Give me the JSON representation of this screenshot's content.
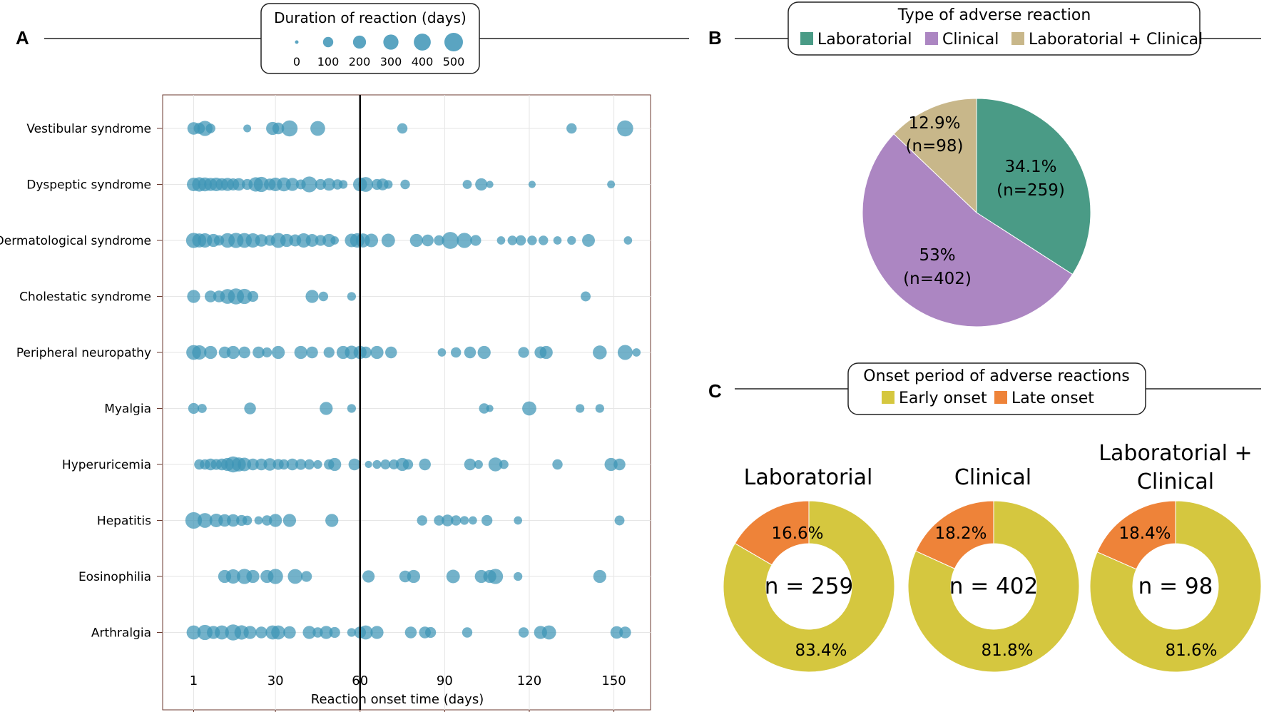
{
  "panels": {
    "a": "A",
    "b": "B",
    "c": "C"
  },
  "colors": {
    "bubble": "#3d94b6",
    "laboratorial": "#4a9b86",
    "clinical": "#ac86c2",
    "lab_clinical": "#c8b78a",
    "early": "#d5c73f",
    "late": "#ee8339",
    "axis": "#6b3a2f"
  },
  "chart_data": [
    {
      "type": "scatter",
      "title": "Duration of reaction (days)",
      "xlabel": "Reaction onset time (days)",
      "ylabel": "",
      "xlim": [
        -10,
        163
      ],
      "xticks": [
        1,
        30,
        60,
        90,
        120,
        150
      ],
      "vline": 60,
      "size_legend": [
        0,
        100,
        200,
        300,
        400,
        500
      ],
      "categories": [
        "Vestibular syndrome",
        "Dyspeptic syndrome",
        "Dermatological syndrome",
        "Cholestatic syndrome",
        "Peripheral neuropathy",
        "Myalgia",
        "Hyperuricemia",
        "Hepatitis",
        "Eosinophilia",
        "Arthralgia"
      ],
      "points": [
        [
          [
            1,
            180
          ],
          [
            3,
            130
          ],
          [
            5,
            300
          ],
          [
            7,
            80
          ],
          [
            20,
            40
          ],
          [
            29,
            200
          ],
          [
            31,
            150
          ],
          [
            35,
            350
          ],
          [
            45,
            280
          ],
          [
            75,
            100
          ],
          [
            135,
            100
          ],
          [
            154,
            350
          ]
        ],
        [
          [
            1,
            220
          ],
          [
            3,
            260
          ],
          [
            5,
            240
          ],
          [
            7,
            200
          ],
          [
            9,
            220
          ],
          [
            11,
            180
          ],
          [
            13,
            200
          ],
          [
            15,
            160
          ],
          [
            17,
            180
          ],
          [
            20,
            120
          ],
          [
            23,
            260
          ],
          [
            25,
            300
          ],
          [
            28,
            150
          ],
          [
            30,
            220
          ],
          [
            33,
            240
          ],
          [
            36,
            200
          ],
          [
            39,
            90
          ],
          [
            42,
            340
          ],
          [
            46,
            120
          ],
          [
            49,
            180
          ],
          [
            52,
            100
          ],
          [
            54,
            60
          ],
          [
            60,
            240
          ],
          [
            62,
            280
          ],
          [
            66,
            120
          ],
          [
            68,
            150
          ],
          [
            70,
            60
          ],
          [
            76,
            80
          ],
          [
            98,
            70
          ],
          [
            103,
            170
          ],
          [
            106,
            30
          ],
          [
            121,
            30
          ],
          [
            149,
            40
          ]
        ],
        [
          [
            1,
            300
          ],
          [
            3,
            250
          ],
          [
            5,
            260
          ],
          [
            8,
            200
          ],
          [
            10,
            100
          ],
          [
            13,
            270
          ],
          [
            16,
            300
          ],
          [
            19,
            280
          ],
          [
            22,
            260
          ],
          [
            25,
            180
          ],
          [
            28,
            120
          ],
          [
            31,
            290
          ],
          [
            34,
            200
          ],
          [
            37,
            160
          ],
          [
            40,
            260
          ],
          [
            43,
            190
          ],
          [
            46,
            120
          ],
          [
            49,
            200
          ],
          [
            51,
            50
          ],
          [
            57,
            220
          ],
          [
            59,
            260
          ],
          [
            61,
            250
          ],
          [
            64,
            220
          ],
          [
            70,
            220
          ],
          [
            80,
            200
          ],
          [
            84,
            150
          ],
          [
            88,
            100
          ],
          [
            92,
            400
          ],
          [
            97,
            300
          ],
          [
            101,
            120
          ],
          [
            110,
            50
          ],
          [
            114,
            80
          ],
          [
            117,
            100
          ],
          [
            121,
            80
          ],
          [
            125,
            80
          ],
          [
            130,
            50
          ],
          [
            135,
            60
          ],
          [
            141,
            190
          ],
          [
            155,
            50
          ]
        ],
        [
          [
            1,
            200
          ],
          [
            7,
            150
          ],
          [
            10,
            150
          ],
          [
            13,
            280
          ],
          [
            16,
            350
          ],
          [
            19,
            300
          ],
          [
            22,
            120
          ],
          [
            43,
            200
          ],
          [
            47,
            80
          ],
          [
            57,
            60
          ],
          [
            140,
            90
          ]
        ],
        [
          [
            1,
            280
          ],
          [
            3,
            260
          ],
          [
            7,
            200
          ],
          [
            12,
            150
          ],
          [
            15,
            200
          ],
          [
            19,
            150
          ],
          [
            24,
            150
          ],
          [
            27,
            90
          ],
          [
            31,
            200
          ],
          [
            39,
            200
          ],
          [
            43,
            150
          ],
          [
            49,
            120
          ],
          [
            54,
            200
          ],
          [
            57,
            220
          ],
          [
            60,
            200
          ],
          [
            62,
            150
          ],
          [
            66,
            200
          ],
          [
            71,
            150
          ],
          [
            89,
            50
          ],
          [
            94,
            100
          ],
          [
            99,
            150
          ],
          [
            104,
            200
          ],
          [
            118,
            120
          ],
          [
            124,
            160
          ],
          [
            126,
            200
          ],
          [
            145,
            240
          ],
          [
            154,
            290
          ],
          [
            158,
            50
          ]
        ],
        [
          [
            1,
            120
          ],
          [
            4,
            70
          ],
          [
            21,
            150
          ],
          [
            48,
            200
          ],
          [
            57,
            60
          ],
          [
            104,
            100
          ],
          [
            106,
            30
          ],
          [
            120,
            250
          ],
          [
            138,
            60
          ],
          [
            145,
            60
          ]
        ],
        [
          [
            3,
            100
          ],
          [
            5,
            100
          ],
          [
            7,
            150
          ],
          [
            9,
            120
          ],
          [
            11,
            150
          ],
          [
            13,
            200
          ],
          [
            15,
            350
          ],
          [
            17,
            250
          ],
          [
            19,
            220
          ],
          [
            22,
            150
          ],
          [
            25,
            150
          ],
          [
            28,
            180
          ],
          [
            31,
            120
          ],
          [
            33,
            100
          ],
          [
            36,
            150
          ],
          [
            39,
            120
          ],
          [
            42,
            100
          ],
          [
            45,
            60
          ],
          [
            49,
            100
          ],
          [
            51,
            200
          ],
          [
            58,
            150
          ],
          [
            63,
            30
          ],
          [
            66,
            60
          ],
          [
            69,
            90
          ],
          [
            72,
            90
          ],
          [
            75,
            200
          ],
          [
            77,
            100
          ],
          [
            83,
            150
          ],
          [
            99,
            150
          ],
          [
            102,
            60
          ],
          [
            108,
            240
          ],
          [
            111,
            70
          ],
          [
            130,
            100
          ],
          [
            149,
            200
          ],
          [
            152,
            150
          ]
        ],
        [
          [
            1,
            380
          ],
          [
            5,
            280
          ],
          [
            9,
            220
          ],
          [
            12,
            180
          ],
          [
            15,
            180
          ],
          [
            18,
            120
          ],
          [
            20,
            80
          ],
          [
            24,
            50
          ],
          [
            27,
            100
          ],
          [
            30,
            200
          ],
          [
            35,
            200
          ],
          [
            50,
            200
          ],
          [
            82,
            100
          ],
          [
            88,
            100
          ],
          [
            91,
            150
          ],
          [
            94,
            100
          ],
          [
            97,
            60
          ],
          [
            100,
            50
          ],
          [
            105,
            120
          ],
          [
            116,
            50
          ],
          [
            152,
            90
          ]
        ],
        [
          [
            12,
            200
          ],
          [
            15,
            260
          ],
          [
            19,
            300
          ],
          [
            22,
            200
          ],
          [
            27,
            200
          ],
          [
            30,
            300
          ],
          [
            37,
            280
          ],
          [
            41,
            120
          ],
          [
            63,
            170
          ],
          [
            76,
            150
          ],
          [
            79,
            200
          ],
          [
            93,
            220
          ],
          [
            103,
            200
          ],
          [
            106,
            200
          ],
          [
            108,
            300
          ],
          [
            116,
            60
          ],
          [
            145,
            200
          ]
        ],
        [
          [
            1,
            250
          ],
          [
            5,
            300
          ],
          [
            8,
            200
          ],
          [
            11,
            250
          ],
          [
            15,
            350
          ],
          [
            18,
            260
          ],
          [
            21,
            200
          ],
          [
            25,
            150
          ],
          [
            29,
            250
          ],
          [
            31,
            250
          ],
          [
            35,
            180
          ],
          [
            42,
            200
          ],
          [
            45,
            100
          ],
          [
            48,
            200
          ],
          [
            51,
            120
          ],
          [
            57,
            60
          ],
          [
            60,
            150
          ],
          [
            62,
            250
          ],
          [
            66,
            200
          ],
          [
            78,
            150
          ],
          [
            83,
            150
          ],
          [
            85,
            120
          ],
          [
            98,
            100
          ],
          [
            118,
            100
          ],
          [
            124,
            200
          ],
          [
            127,
            250
          ],
          [
            151,
            180
          ],
          [
            154,
            150
          ]
        ]
      ]
    },
    {
      "type": "pie",
      "title": "Type of adverse reaction",
      "labels": [
        "Laboratorial",
        "Clinical",
        "Laboratorial + Clinical"
      ],
      "values": [
        34.1,
        53,
        12.9
      ],
      "pct_labels": [
        "34.1%",
        "53%",
        "12.9%"
      ],
      "count_labels": [
        "(n=259)",
        "(n=402)",
        "(n=98)"
      ]
    },
    {
      "type": "pie",
      "title": "Onset period of adverse reactions",
      "legend": [
        "Early onset",
        "Late onset"
      ],
      "donuts": [
        {
          "title_lines": [
            "Laboratorial"
          ],
          "late": 16.6,
          "early": 83.4,
          "late_label": "16.6%",
          "early_label": "83.4%",
          "center": "n = 259"
        },
        {
          "title_lines": [
            "Clinical"
          ],
          "late": 18.2,
          "early": 81.8,
          "late_label": "18.2%",
          "early_label": "81.8%",
          "center": "n = 402"
        },
        {
          "title_lines": [
            "Laboratorial +",
            "Clinical"
          ],
          "late": 18.4,
          "early": 81.6,
          "late_label": "18.4%",
          "early_label": "81.6%",
          "center": "n = 98"
        }
      ]
    }
  ]
}
